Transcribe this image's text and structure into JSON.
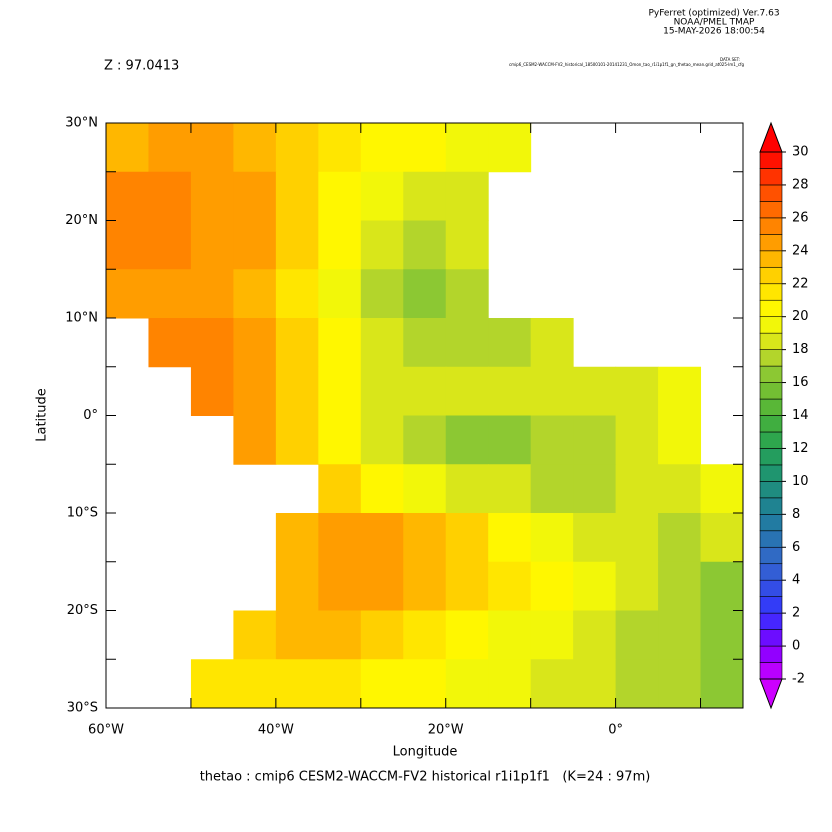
{
  "chart_data": {
    "type": "heatmap",
    "header": [
      "PyFerret (optimized) Ver.7.63",
      "NOAA/PMEL TMAP",
      "15-MAY-2026 18:00:54"
    ],
    "dataset_label": "DATA SET:",
    "dataset": "cmip6_CESM2-WACCM-FV2_historical_18500101-20141231_Omon_tao_r1i1p1f1_gn_thetao_mean.grid_at025-lm1_cfg",
    "subtitle": "Z : 97.0413",
    "title": "thetao : cmip6 CESM2-WACCM-FV2 historical r1i1p1f1   (K=24 : 97m)",
    "x_label": "Longitude",
    "y_label": "Latitude",
    "xlim": [
      -60,
      15
    ],
    "ylim": [
      -30,
      30
    ],
    "xticks": [
      {
        "value": -60,
        "label": "60°W"
      },
      {
        "value": -40,
        "label": "40°W"
      },
      {
        "value": -20,
        "label": "20°W"
      },
      {
        "value": 0,
        "label": "0°"
      }
    ],
    "xminor": [
      -50,
      -30,
      -10,
      10
    ],
    "yticks": [
      {
        "value": 30,
        "label": "30°N"
      },
      {
        "value": 20,
        "label": "20°N"
      },
      {
        "value": 10,
        "label": "10°N"
      },
      {
        "value": 0,
        "label": "0°"
      },
      {
        "value": -10,
        "label": "10°S"
      },
      {
        "value": -20,
        "label": "20°S"
      },
      {
        "value": -30,
        "label": "30°S"
      }
    ],
    "yminor": [
      25,
      15,
      5,
      -5,
      -15,
      -25
    ],
    "x": [
      -57.5,
      -52.5,
      -47.5,
      -42.5,
      -37.5,
      -32.5,
      -27.5,
      -22.5,
      -17.5,
      -12.5,
      -7.5,
      -2.5,
      2.5,
      7.5,
      12.5
    ],
    "y": [
      27.5,
      22.5,
      17.5,
      12.5,
      7.5,
      2.5,
      -2.5,
      -7.5,
      -12.5,
      -17.5,
      -22.5,
      -27.5
    ],
    "z": [
      [
        23,
        24,
        24,
        23,
        22,
        21,
        20,
        20,
        19.5,
        19,
        null,
        null,
        null,
        null,
        null
      ],
      [
        25,
        25,
        24,
        24,
        22,
        20,
        19,
        18,
        18,
        null,
        null,
        null,
        null,
        null,
        null
      ],
      [
        25,
        25,
        24,
        24,
        22,
        20,
        18,
        17,
        18,
        null,
        null,
        null,
        null,
        null,
        null
      ],
      [
        24,
        24,
        24,
        23,
        21,
        19,
        17,
        16,
        17,
        null,
        null,
        null,
        null,
        null,
        null
      ],
      [
        null,
        25,
        25,
        24,
        22,
        20,
        18,
        17,
        17,
        17,
        18,
        null,
        null,
        null,
        null
      ],
      [
        null,
        null,
        25,
        24,
        22,
        20,
        18,
        18,
        18,
        18,
        18,
        18,
        18,
        19,
        null
      ],
      [
        null,
        null,
        null,
        24,
        22,
        20,
        18,
        17,
        16,
        16,
        17,
        17,
        18,
        19,
        null
      ],
      [
        null,
        null,
        null,
        null,
        null,
        22,
        20,
        19,
        18,
        18,
        17,
        17,
        18,
        18,
        19
      ],
      [
        null,
        null,
        null,
        null,
        23,
        24,
        24,
        23,
        22,
        20,
        19,
        18,
        18,
        17,
        18
      ],
      [
        null,
        null,
        null,
        null,
        23,
        24,
        24,
        23,
        22,
        21,
        20,
        19,
        18,
        17,
        16
      ],
      [
        null,
        null,
        null,
        22,
        23,
        23,
        22,
        21,
        20,
        19,
        19,
        18,
        17,
        17,
        16
      ],
      [
        null,
        null,
        21,
        21,
        21,
        21,
        20,
        20,
        19,
        19,
        18,
        18,
        17,
        17,
        16
      ]
    ],
    "colorbar_lim": [
      -2,
      30
    ],
    "colorbar_ticks": [
      -2,
      0,
      2,
      4,
      6,
      8,
      10,
      12,
      14,
      16,
      18,
      20,
      22,
      24,
      26,
      28,
      30
    ],
    "colormap": [
      [
        -2,
        "#cc00ff"
      ],
      [
        0,
        "#7f00ff"
      ],
      [
        2,
        "#3333ff"
      ],
      [
        5,
        "#3366cc"
      ],
      [
        8,
        "#1f7f99"
      ],
      [
        11,
        "#1f9966"
      ],
      [
        13,
        "#33aa44"
      ],
      [
        15,
        "#66bb33"
      ],
      [
        17,
        "#99cc33"
      ],
      [
        18,
        "#ccdd22"
      ],
      [
        20,
        "#ffff00"
      ],
      [
        22,
        "#ffdd00"
      ],
      [
        24,
        "#ffaa00"
      ],
      [
        26,
        "#ff7700"
      ],
      [
        28,
        "#ff4400"
      ],
      [
        30,
        "#ff0000"
      ]
    ]
  }
}
